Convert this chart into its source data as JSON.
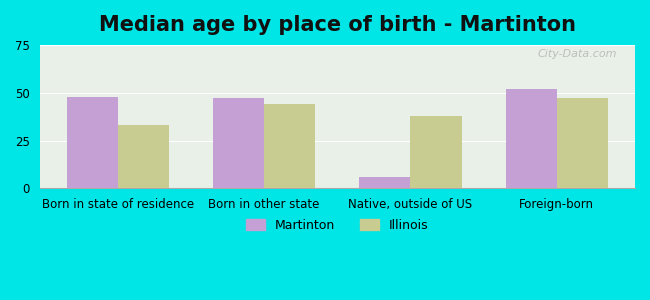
{
  "title": "Median age by place of birth - Martinton",
  "categories": [
    "Born in state of residence",
    "Born in other state",
    "Native, outside of US",
    "Foreign-born"
  ],
  "martinton_values": [
    48,
    47,
    6,
    52
  ],
  "illinois_values": [
    33,
    44,
    38,
    47
  ],
  "martinton_color": "#c4a0d4",
  "illinois_color": "#c8cc90",
  "ylim": [
    0,
    75
  ],
  "yticks": [
    0,
    25,
    50,
    75
  ],
  "bar_width": 0.35,
  "background_outer": "#00e5e5",
  "background_inner_top": "#e8f5e8",
  "background_inner_bottom": "#ffffff",
  "watermark": "City-Data.com",
  "legend_martinton": "Martinton",
  "legend_illinois": "Illinois",
  "title_fontsize": 15,
  "tick_fontsize": 8.5,
  "legend_fontsize": 9
}
